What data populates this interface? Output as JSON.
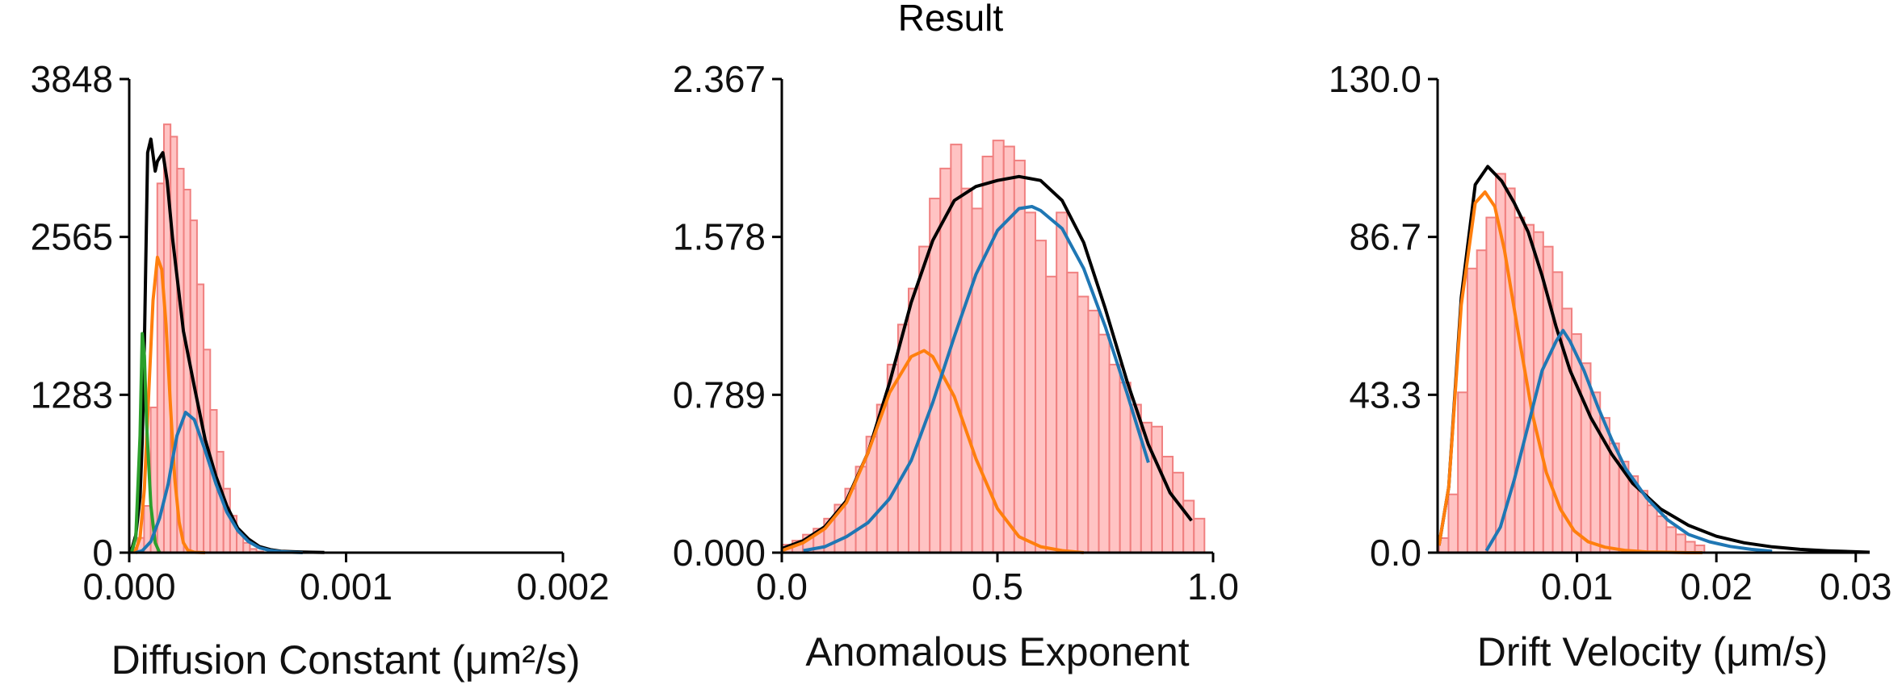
{
  "figure": {
    "title": "Result"
  },
  "chart_data": [
    {
      "type": "bar",
      "xlabel": "Diffusion Constant (μm²/s)",
      "ylabel": "",
      "xticks": [
        "0.000",
        "0.001",
        "0.002"
      ],
      "yticks": [
        "0",
        "1283",
        "2565",
        "3848"
      ],
      "xlim": [
        0,
        0.002
      ],
      "ylim": [
        0,
        3848
      ],
      "histogram": {
        "bin_start": 7.5e-06,
        "bin_width": 3.05e-05,
        "values": [
          40,
          120,
          380,
          1180,
          3000,
          3480,
          3380,
          3120,
          2950,
          2700,
          2180,
          1650,
          1160,
          820,
          520,
          300,
          160,
          80,
          30,
          10
        ]
      },
      "series": [
        {
          "name": "",
          "color": "#000000",
          "x": [
            1e-05,
            3e-05,
            5e-05,
            6e-05,
            7e-05,
            8.5e-05,
            0.0001,
            0.00012,
            0.00013,
            0.000155,
            0.000175,
            0.0002,
            0.00025,
            0.0003,
            0.00035,
            0.0004,
            0.00045,
            0.0005,
            0.00055,
            0.0006,
            0.00065,
            0.0007,
            0.0008,
            0.0009
          ],
          "y": [
            20,
            140,
            450,
            900,
            1700,
            3250,
            3360,
            3100,
            3180,
            3250,
            3020,
            2550,
            1800,
            1350,
            920,
            620,
            380,
            200,
            110,
            50,
            25,
            12,
            5,
            2
          ]
        },
        {
          "name": "",
          "color": "#ff7f0e",
          "x": [
            1e-05,
            3e-05,
            5e-05,
            7e-05,
            9e-05,
            0.00011,
            0.00013,
            0.00015,
            0.00017,
            0.00019,
            0.00021,
            0.00023,
            0.00025,
            0.00027,
            0.0003,
            0.00035
          ],
          "y": [
            0,
            20,
            120,
            520,
            1300,
            2050,
            2400,
            2300,
            1850,
            1200,
            600,
            250,
            80,
            20,
            3,
            0
          ]
        },
        {
          "name": "",
          "color": "#2ca02c",
          "x": [
            1e-05,
            3e-05,
            5e-05,
            6e-05,
            7e-05,
            8e-05,
            0.0001,
            0.00012,
            0.00014
          ],
          "y": [
            0,
            120,
            950,
            1780,
            1600,
            1050,
            380,
            80,
            0
          ]
        },
        {
          "name": "",
          "color": "#1f77b4",
          "x": [
            3e-05,
            6e-05,
            0.0001,
            0.00014,
            0.00018,
            0.0002,
            0.00022,
            0.00026,
            0.0003,
            0.00035,
            0.0004,
            0.00045,
            0.0005,
            0.00055,
            0.0006,
            0.00065,
            0.0007,
            0.00075,
            0.0008
          ],
          "y": [
            0,
            15,
            90,
            280,
            560,
            760,
            950,
            1140,
            1080,
            830,
            560,
            330,
            180,
            90,
            40,
            18,
            8,
            3,
            0
          ]
        }
      ]
    },
    {
      "type": "bar",
      "xlabel": "Anomalous Exponent",
      "ylabel": "",
      "xticks": [
        "0.0",
        "0.5",
        "1.0"
      ],
      "yticks": [
        "0.000",
        "0.789",
        "1.578",
        "2.367"
      ],
      "xlim": [
        0,
        1.0
      ],
      "ylim": [
        0,
        2.367
      ],
      "histogram": {
        "bin_start": 0.0,
        "bin_width": 0.0245,
        "values": [
          0.04,
          0.06,
          0.09,
          0.12,
          0.17,
          0.24,
          0.32,
          0.43,
          0.58,
          0.74,
          0.94,
          1.14,
          1.32,
          1.53,
          1.77,
          1.92,
          2.04,
          1.82,
          1.72,
          1.98,
          2.06,
          2.03,
          1.96,
          1.7,
          1.56,
          1.38,
          1.7,
          1.4,
          1.28,
          1.21,
          1.09,
          0.94,
          0.85,
          0.74,
          0.65,
          0.63,
          0.48,
          0.4,
          0.26,
          0.17
        ]
      },
      "series": [
        {
          "name": "",
          "color": "#000000",
          "x": [
            0.0,
            0.05,
            0.1,
            0.15,
            0.2,
            0.25,
            0.3,
            0.35,
            0.4,
            0.45,
            0.5,
            0.55,
            0.6,
            0.65,
            0.7,
            0.75,
            0.8,
            0.85,
            0.9,
            0.95
          ],
          "y": [
            0.02,
            0.06,
            0.13,
            0.26,
            0.5,
            0.85,
            1.25,
            1.56,
            1.76,
            1.83,
            1.86,
            1.88,
            1.86,
            1.76,
            1.55,
            1.22,
            0.86,
            0.54,
            0.3,
            0.16
          ]
        },
        {
          "name": "",
          "color": "#ff7f0e",
          "x": [
            0.0,
            0.05,
            0.1,
            0.15,
            0.2,
            0.25,
            0.3,
            0.33,
            0.35,
            0.4,
            0.45,
            0.5,
            0.55,
            0.6,
            0.65,
            0.7
          ],
          "y": [
            0.01,
            0.05,
            0.12,
            0.25,
            0.5,
            0.8,
            0.98,
            1.01,
            0.98,
            0.78,
            0.47,
            0.22,
            0.08,
            0.03,
            0.01,
            0.0
          ]
        },
        {
          "name": "",
          "color": "#1f77b4",
          "x": [
            0.05,
            0.1,
            0.15,
            0.2,
            0.25,
            0.3,
            0.35,
            0.4,
            0.45,
            0.5,
            0.55,
            0.58,
            0.6,
            0.65,
            0.7,
            0.75,
            0.8,
            0.85
          ],
          "y": [
            0.01,
            0.03,
            0.08,
            0.15,
            0.27,
            0.46,
            0.75,
            1.08,
            1.39,
            1.61,
            1.72,
            1.73,
            1.71,
            1.62,
            1.42,
            1.13,
            0.8,
            0.45
          ]
        }
      ]
    },
    {
      "type": "bar",
      "xlabel": "Drift Velocity (μm/s)",
      "ylabel": "",
      "xticks": [
        "0.01",
        "0.02",
        "0.03"
      ],
      "yticks": [
        "0.0",
        "43.3",
        "86.7",
        "130.0"
      ],
      "xlim": [
        0,
        0.031
      ],
      "ylim": [
        0,
        130.0
      ],
      "histogram": {
        "bin_start": 0.0001,
        "bin_width": 0.00068,
        "values": [
          4,
          16,
          44,
          78,
          83,
          92,
          104,
          100,
          92,
          90,
          88,
          84,
          77,
          67,
          60,
          52,
          44,
          37,
          30,
          25,
          21,
          17,
          13,
          10,
          7,
          5,
          3,
          2
        ]
      },
      "series": [
        {
          "name": "",
          "color": "#000000",
          "x": [
            0.0001,
            0.0008,
            0.0017,
            0.0027,
            0.0036,
            0.0046,
            0.0055,
            0.0065,
            0.0075,
            0.0085,
            0.0095,
            0.011,
            0.0125,
            0.014,
            0.016,
            0.018,
            0.02,
            0.022,
            0.024,
            0.026,
            0.028,
            0.031
          ],
          "y": [
            2,
            18,
            70,
            101,
            106,
            102,
            96,
            88,
            76,
            62,
            50,
            37,
            27,
            19,
            12,
            7.5,
            4.5,
            2.7,
            1.6,
            0.9,
            0.5,
            0.1
          ]
        },
        {
          "name": "",
          "color": "#ff7f0e",
          "x": [
            0.0001,
            0.0008,
            0.0017,
            0.0027,
            0.0034,
            0.0041,
            0.0048,
            0.0058,
            0.0068,
            0.0078,
            0.0088,
            0.0098,
            0.0108,
            0.012,
            0.0135,
            0.015,
            0.0165,
            0.018,
            0.019
          ],
          "y": [
            2,
            18,
            68,
            96,
            99,
            95,
            83,
            60,
            38,
            22,
            12,
            6,
            3,
            1.5,
            0.6,
            0.2,
            0.1,
            0.0,
            0.0
          ]
        },
        {
          "name": "",
          "color": "#1f77b4",
          "x": [
            0.0035,
            0.0045,
            0.0055,
            0.0065,
            0.0075,
            0.0085,
            0.009,
            0.0095,
            0.0105,
            0.0115,
            0.0125,
            0.0135,
            0.015,
            0.0165,
            0.018,
            0.0195,
            0.021,
            0.0225,
            0.024
          ],
          "y": [
            0.5,
            7,
            20,
            35,
            50,
            58,
            61,
            58,
            50,
            40,
            31,
            23,
            15,
            9,
            5,
            3,
            1.7,
            0.9,
            0.4
          ]
        }
      ]
    }
  ]
}
